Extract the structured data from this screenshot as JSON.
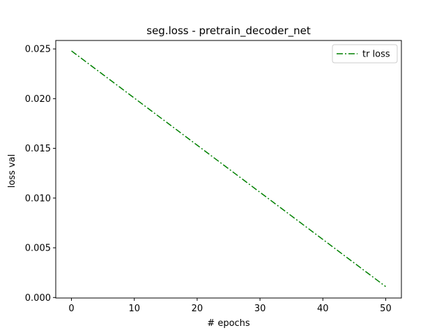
{
  "chart_data": {
    "type": "line",
    "title": "seg.loss - pretrain_decoder_net",
    "xlabel": "# epochs",
    "ylabel": "loss val",
    "xlim": [
      -2.5,
      52.5
    ],
    "ylim": [
      -5e-05,
      0.02585
    ],
    "xticks": [
      0,
      10,
      20,
      30,
      40,
      50
    ],
    "xtick_labels": [
      "0",
      "10",
      "20",
      "30",
      "40",
      "50"
    ],
    "yticks": [
      0.0,
      0.005,
      0.01,
      0.015,
      0.02,
      0.025
    ],
    "ytick_labels": [
      "0.000",
      "0.005",
      "0.010",
      "0.015",
      "0.020",
      "0.025"
    ],
    "grid": false,
    "legend_position": "top-right",
    "series": [
      {
        "name": "tr loss",
        "color": "#008000",
        "line_style": "dash-dot",
        "x": [
          0,
          5,
          10,
          15,
          20,
          25,
          30,
          35,
          40,
          45,
          50
        ],
        "y": [
          0.0248,
          0.02243,
          0.02006,
          0.01769,
          0.01532,
          0.01295,
          0.01058,
          0.00821,
          0.00584,
          0.00347,
          0.0011
        ]
      }
    ]
  }
}
